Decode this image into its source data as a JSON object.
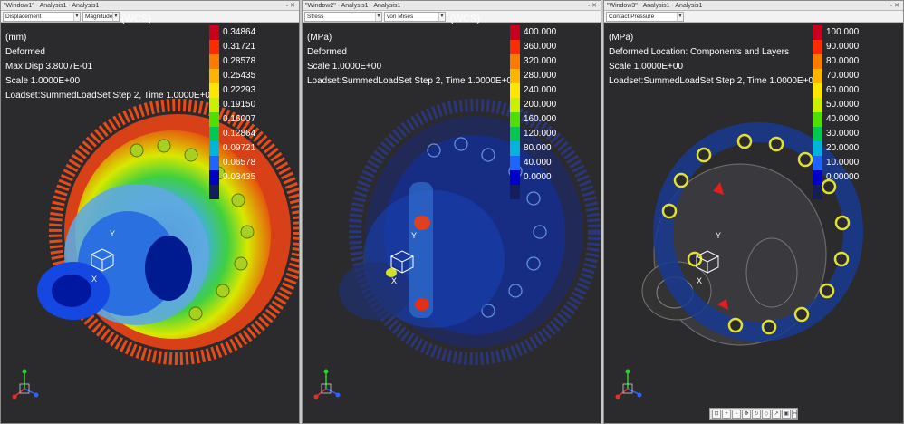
{
  "windows": [
    {
      "title": "\"Window1\" - Analysis1 - Analysis1",
      "combo1": "Displacement",
      "combo2": "Magnitude",
      "wcs": "(WCS)",
      "info": [
        "(mm)",
        "Deformed",
        "Max Disp  3.8007E-01",
        "Scale  1.0000E+00",
        "Loadset:SummedLoadSet Step 2, Time  1.0000E+0"
      ],
      "legend_values": [
        "0.34864",
        "0.31721",
        "0.28578",
        "0.25435",
        "0.22293",
        "0.19150",
        "0.16007",
        "0.12864",
        "0.09721",
        "0.06578",
        "0.03435"
      ]
    },
    {
      "title": "\"Window2\" - Analysis1 - Analysis1",
      "combo1": "Stress",
      "combo2": "von Mises",
      "wcs": "(WCS)",
      "info": [
        "(MPa)",
        "Deformed",
        "Scale  1.0000E+00",
        "Loadset:SummedLoadSet Step 2, Time  1.0000E+00"
      ],
      "legend_values": [
        "400.000",
        "360.000",
        "320.000",
        "280.000",
        "240.000",
        "200.000",
        "160.000",
        "120.000",
        "80.000",
        "40.000",
        "0.0000"
      ]
    },
    {
      "title": "\"Window3\" - Analysis1 - Analysis1",
      "combo1": "Contact Pressure",
      "combo2": "",
      "wcs": "",
      "info": [
        "(MPa)",
        "Deformed Location: Components and Layers",
        "Scale  1.0000E+00",
        "Loadset:SummedLoadSet Step 2, Time  1.0000E+00"
      ],
      "legend_values": [
        "100.000",
        "90.0000",
        "80.0000",
        "70.0000",
        "60.0000",
        "50.0000",
        "40.0000",
        "30.0000",
        "20.0000",
        "10.0000",
        "0.00000"
      ]
    }
  ],
  "legend_colors": [
    "#c8001e",
    "#ff2a00",
    "#ff7a00",
    "#ffb400",
    "#ffe600",
    "#c8f000",
    "#50e000",
    "#00c850",
    "#00b4dc",
    "#1e64ff",
    "#0000c8",
    "#141e5a"
  ],
  "triad_labels": [
    "Y",
    "X",
    "Z"
  ],
  "view_tools": [
    "zoom-fit-icon",
    "zoom-in-icon",
    "zoom-out-icon",
    "pan-icon",
    "rotate-icon",
    "view-icon",
    "orient-icon",
    "select-icon",
    "cut-icon"
  ]
}
